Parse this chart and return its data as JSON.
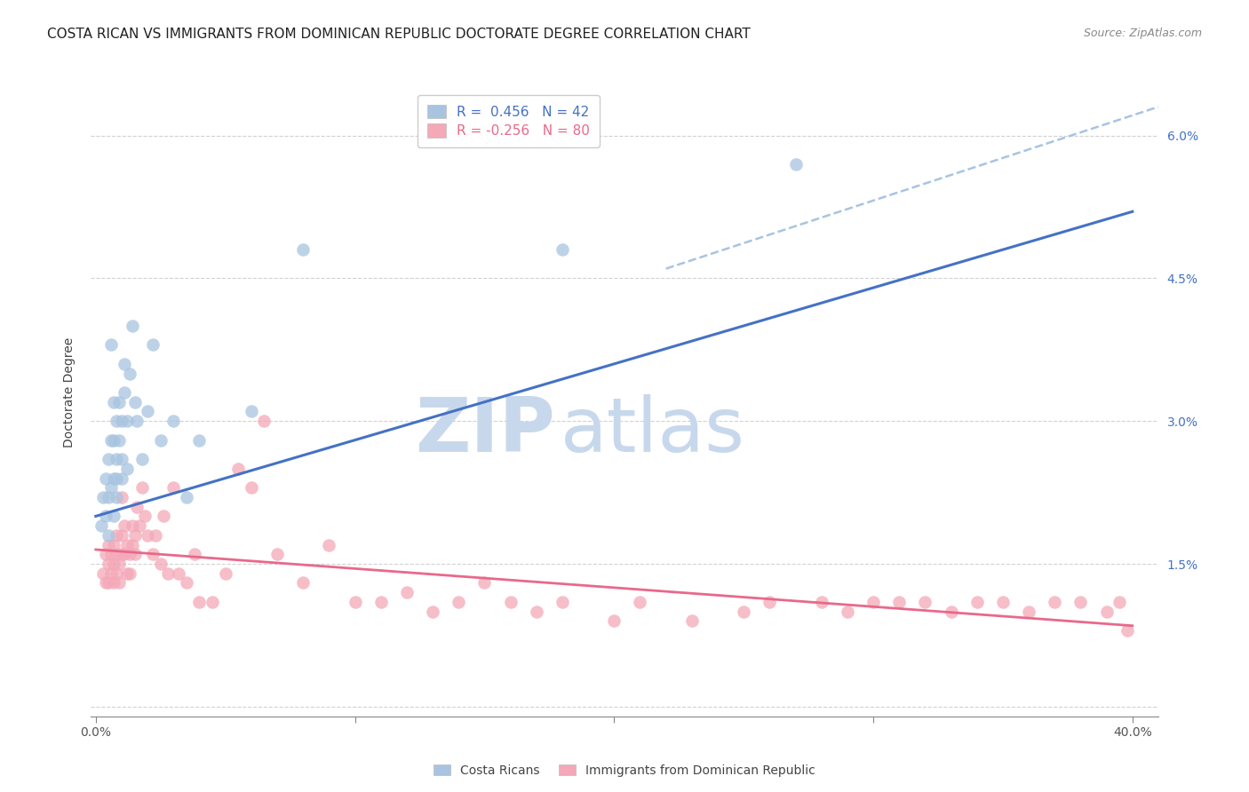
{
  "title": "COSTA RICAN VS IMMIGRANTS FROM DOMINICAN REPUBLIC DOCTORATE DEGREE CORRELATION CHART",
  "source": "Source: ZipAtlas.com",
  "ylabel": "Doctorate Degree",
  "yticks": [
    0.0,
    0.015,
    0.03,
    0.045,
    0.06
  ],
  "ytick_labels": [
    "",
    "1.5%",
    "3.0%",
    "4.5%",
    "6.0%"
  ],
  "xticks": [
    0.0,
    0.1,
    0.2,
    0.3,
    0.4
  ],
  "xtick_labels": [
    "0.0%",
    "",
    "",
    "",
    "40.0%"
  ],
  "xlim": [
    -0.002,
    0.41
  ],
  "ylim": [
    -0.001,
    0.067
  ],
  "blue_R": 0.456,
  "blue_N": 42,
  "pink_R": -0.256,
  "pink_N": 80,
  "blue_color": "#A8C4E0",
  "pink_color": "#F4A8B8",
  "blue_line_color": "#4472C4",
  "pink_line_color": "#E8698A",
  "dashed_color": "#A8C4E0",
  "legend_label_blue": "Costa Ricans",
  "legend_label_pink": "Immigrants from Dominican Republic",
  "blue_scatter_x": [
    0.002,
    0.003,
    0.004,
    0.004,
    0.005,
    0.005,
    0.005,
    0.006,
    0.006,
    0.006,
    0.007,
    0.007,
    0.007,
    0.007,
    0.008,
    0.008,
    0.008,
    0.008,
    0.009,
    0.009,
    0.01,
    0.01,
    0.01,
    0.011,
    0.011,
    0.012,
    0.012,
    0.013,
    0.014,
    0.015,
    0.016,
    0.018,
    0.02,
    0.022,
    0.025,
    0.03,
    0.035,
    0.04,
    0.06,
    0.08,
    0.18,
    0.27
  ],
  "blue_scatter_y": [
    0.019,
    0.022,
    0.02,
    0.024,
    0.018,
    0.022,
    0.026,
    0.023,
    0.028,
    0.038,
    0.02,
    0.024,
    0.028,
    0.032,
    0.022,
    0.024,
    0.026,
    0.03,
    0.028,
    0.032,
    0.024,
    0.026,
    0.03,
    0.033,
    0.036,
    0.025,
    0.03,
    0.035,
    0.04,
    0.032,
    0.03,
    0.026,
    0.031,
    0.038,
    0.028,
    0.03,
    0.022,
    0.028,
    0.031,
    0.048,
    0.048,
    0.057
  ],
  "pink_scatter_x": [
    0.003,
    0.004,
    0.004,
    0.005,
    0.005,
    0.005,
    0.006,
    0.006,
    0.007,
    0.007,
    0.007,
    0.008,
    0.008,
    0.008,
    0.009,
    0.009,
    0.01,
    0.01,
    0.01,
    0.011,
    0.011,
    0.012,
    0.012,
    0.013,
    0.013,
    0.014,
    0.014,
    0.015,
    0.015,
    0.016,
    0.017,
    0.018,
    0.019,
    0.02,
    0.022,
    0.023,
    0.025,
    0.026,
    0.028,
    0.03,
    0.032,
    0.035,
    0.038,
    0.04,
    0.045,
    0.05,
    0.055,
    0.06,
    0.065,
    0.07,
    0.08,
    0.09,
    0.1,
    0.11,
    0.12,
    0.13,
    0.14,
    0.15,
    0.16,
    0.17,
    0.18,
    0.2,
    0.21,
    0.23,
    0.25,
    0.26,
    0.28,
    0.29,
    0.3,
    0.31,
    0.32,
    0.33,
    0.34,
    0.35,
    0.36,
    0.37,
    0.38,
    0.39,
    0.395,
    0.398
  ],
  "pink_scatter_y": [
    0.014,
    0.013,
    0.016,
    0.013,
    0.015,
    0.017,
    0.014,
    0.016,
    0.013,
    0.015,
    0.017,
    0.014,
    0.016,
    0.018,
    0.015,
    0.013,
    0.022,
    0.018,
    0.016,
    0.019,
    0.016,
    0.014,
    0.017,
    0.016,
    0.014,
    0.019,
    0.017,
    0.018,
    0.016,
    0.021,
    0.019,
    0.023,
    0.02,
    0.018,
    0.016,
    0.018,
    0.015,
    0.02,
    0.014,
    0.023,
    0.014,
    0.013,
    0.016,
    0.011,
    0.011,
    0.014,
    0.025,
    0.023,
    0.03,
    0.016,
    0.013,
    0.017,
    0.011,
    0.011,
    0.012,
    0.01,
    0.011,
    0.013,
    0.011,
    0.01,
    0.011,
    0.009,
    0.011,
    0.009,
    0.01,
    0.011,
    0.011,
    0.01,
    0.011,
    0.011,
    0.011,
    0.01,
    0.011,
    0.011,
    0.01,
    0.011,
    0.011,
    0.01,
    0.011,
    0.008
  ],
  "blue_line_x0": 0.0,
  "blue_line_x1": 0.4,
  "blue_line_y0": 0.02,
  "blue_line_y1": 0.052,
  "pink_line_x0": 0.0,
  "pink_line_x1": 0.4,
  "pink_line_y0": 0.0165,
  "pink_line_y1": 0.0085,
  "dashed_line_x0": 0.22,
  "dashed_line_x1": 0.41,
  "dashed_line_y0": 0.046,
  "dashed_line_y1": 0.063,
  "watermark_zip": "ZIP",
  "watermark_atlas": "atlas",
  "watermark_color": "#C8D8EC",
  "background_color": "#FFFFFF",
  "grid_color": "#CCCCCC",
  "title_fontsize": 11,
  "axis_label_fontsize": 10,
  "tick_fontsize": 10,
  "legend_fontsize": 11,
  "source_fontsize": 9
}
